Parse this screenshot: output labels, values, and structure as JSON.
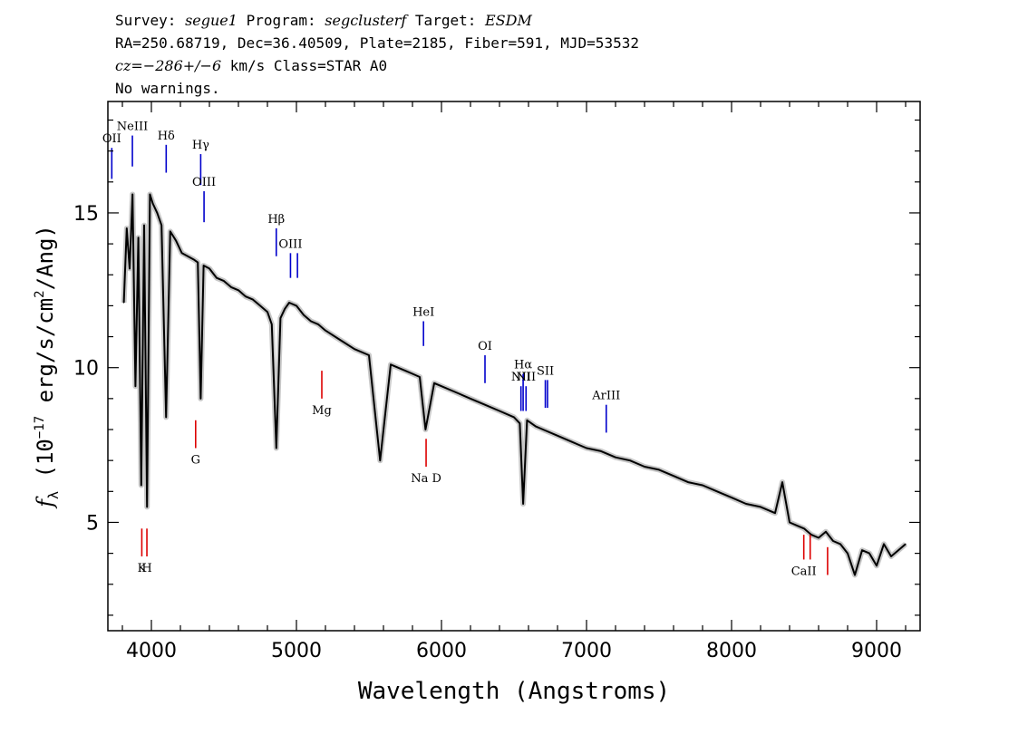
{
  "header": {
    "survey_label": "Survey:",
    "survey": "segue1",
    "program_label": "Program:",
    "program": "segclusterf",
    "target_label": "Target:",
    "target": "ESDM",
    "line2": "RA=250.68719, Dec=36.40509, Plate=2185, Fiber=591, MJD=53532",
    "cz_label": "cz=",
    "cz_value": "−286+/−6",
    "cz_rest": " km/s Class=STAR A0",
    "line4": "No warnings."
  },
  "chart_data": {
    "type": "line",
    "xlabel": "Wavelength (Angstroms)",
    "ylabel": "f_λ (10^-17 erg/s/cm^2/Ang)",
    "xlim": [
      3700,
      9300
    ],
    "ylim": [
      1.5,
      18.6
    ],
    "x_ticks": [
      4000,
      5000,
      6000,
      7000,
      8000,
      9000
    ],
    "y_ticks": [
      5,
      10,
      15
    ],
    "series": [
      {
        "color": "#000000",
        "x": [
          3810,
          3830,
          3850,
          3870,
          3890,
          3910,
          3930,
          3950,
          3970,
          3990,
          4010,
          4040,
          4070,
          4101,
          4130,
          4170,
          4210,
          4250,
          4290,
          4320,
          4340,
          4360,
          4400,
          4450,
          4500,
          4550,
          4600,
          4650,
          4700,
          4750,
          4800,
          4830,
          4861,
          4890,
          4920,
          4950,
          5000,
          5050,
          5100,
          5150,
          5200,
          5300,
          5400,
          5500,
          5577,
          5650,
          5700,
          5750,
          5800,
          5850,
          5890,
          5950,
          6000,
          6100,
          6200,
          6300,
          6400,
          6500,
          6540,
          6563,
          6590,
          6650,
          6700,
          6800,
          6900,
          7000,
          7100,
          7200,
          7300,
          7400,
          7500,
          7600,
          7700,
          7800,
          7900,
          8000,
          8100,
          8200,
          8300,
          8350,
          8400,
          8450,
          8500,
          8550,
          8600,
          8650,
          8700,
          8750,
          8800,
          8850,
          8900,
          8950,
          9000,
          9050,
          9100,
          9150,
          9200
        ],
        "values": [
          12.1,
          14.5,
          13.2,
          15.6,
          9.4,
          14.2,
          6.2,
          14.6,
          5.5,
          15.6,
          15.3,
          15.0,
          14.6,
          8.4,
          14.4,
          14.1,
          13.7,
          13.6,
          13.5,
          13.4,
          9.0,
          13.3,
          13.2,
          12.9,
          12.8,
          12.6,
          12.5,
          12.3,
          12.2,
          12.0,
          11.8,
          11.4,
          7.4,
          11.6,
          11.9,
          12.1,
          12.0,
          11.7,
          11.5,
          11.4,
          11.2,
          10.9,
          10.6,
          10.4,
          7.0,
          10.1,
          10.0,
          9.9,
          9.8,
          9.7,
          8.0,
          9.5,
          9.4,
          9.2,
          9.0,
          8.8,
          8.6,
          8.4,
          8.2,
          5.6,
          8.3,
          8.1,
          8.0,
          7.8,
          7.6,
          7.4,
          7.3,
          7.1,
          7.0,
          6.8,
          6.7,
          6.5,
          6.3,
          6.2,
          6.0,
          5.8,
          5.6,
          5.5,
          5.3,
          6.3,
          5.0,
          4.9,
          4.8,
          4.6,
          4.5,
          4.7,
          4.4,
          4.3,
          4.0,
          3.3,
          4.1,
          4.0,
          3.6,
          4.3,
          3.9,
          4.1,
          4.3
        ]
      }
    ],
    "emission_lines": [
      {
        "label": "OII",
        "wavelength": 3727,
        "y_top": 17.1,
        "y_bottom": 16.1
      },
      {
        "label": "NeIII",
        "wavelength": 3869,
        "y_top": 17.5,
        "y_bottom": 16.5
      },
      {
        "label": "Hδ",
        "wavelength": 4102,
        "y_top": 17.2,
        "y_bottom": 16.3
      },
      {
        "label": "Hγ",
        "wavelength": 4340,
        "y_top": 16.9,
        "y_bottom": 15.9
      },
      {
        "label": "OIII",
        "wavelength": 4363,
        "y_top": 15.7,
        "y_bottom": 14.7
      },
      {
        "label": "Hβ",
        "wavelength": 4861,
        "y_top": 14.5,
        "y_bottom": 13.6
      },
      {
        "label": "OIII",
        "wavelength": 4959,
        "y_top": 13.7,
        "y_bottom": 12.9
      },
      {
        "label": "",
        "wavelength": 5007,
        "y_top": 13.7,
        "y_bottom": 12.9
      },
      {
        "label": "HeI",
        "wavelength": 5876,
        "y_top": 11.5,
        "y_bottom": 10.7
      },
      {
        "label": "OI",
        "wavelength": 6300,
        "y_top": 10.4,
        "y_bottom": 9.5
      },
      {
        "label": "NII",
        "wavelength": 6548,
        "y_top": 9.4,
        "y_bottom": 8.6
      },
      {
        "label": "Hα",
        "wavelength": 6563,
        "y_top": 9.8,
        "y_bottom": 8.6
      },
      {
        "label": "NII",
        "wavelength": 6583,
        "y_top": 9.4,
        "y_bottom": 8.6
      },
      {
        "label": "SII",
        "wavelength": 6716,
        "y_top": 9.6,
        "y_bottom": 8.7
      },
      {
        "label": "",
        "wavelength": 6731,
        "y_top": 9.6,
        "y_bottom": 8.7
      },
      {
        "label": "ArIII",
        "wavelength": 7136,
        "y_top": 8.8,
        "y_bottom": 7.9
      }
    ],
    "absorption_lines": [
      {
        "label": "K",
        "wavelength": 3934,
        "y_top": 4.8,
        "y_bottom": 3.9
      },
      {
        "label": "H",
        "wavelength": 3969,
        "y_top": 4.8,
        "y_bottom": 3.9
      },
      {
        "label": "G",
        "wavelength": 4305,
        "y_top": 8.3,
        "y_bottom": 7.4
      },
      {
        "label": "Mg",
        "wavelength": 5175,
        "y_top": 9.9,
        "y_bottom": 9.0
      },
      {
        "label": "Na D",
        "wavelength": 5894,
        "y_top": 7.7,
        "y_bottom": 6.8
      },
      {
        "label": "CaII",
        "wavelength": 8498,
        "y_top": 4.6,
        "y_bottom": 3.8
      },
      {
        "label": "",
        "wavelength": 8542,
        "y_top": 4.6,
        "y_bottom": 3.8
      },
      {
        "label": "",
        "wavelength": 8662,
        "y_top": 4.2,
        "y_bottom": 3.3
      }
    ],
    "colors": {
      "flux": "#000000",
      "error": "#c8c8c8",
      "emission": "#0000cc",
      "absorption": "#dd0000"
    }
  }
}
